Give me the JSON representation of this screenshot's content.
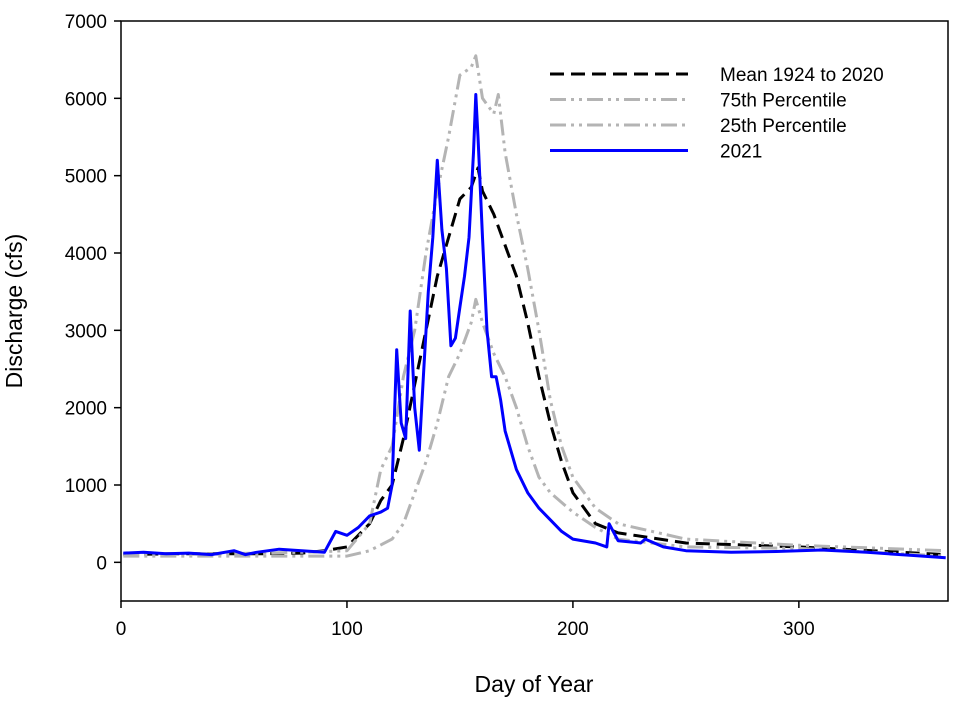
{
  "chart_data": {
    "type": "line",
    "x_label": "Day of Year",
    "y_label": "Discharge (cfs)",
    "xlim": [
      0,
      366
    ],
    "ylim": [
      -500,
      7000
    ],
    "xticks": [
      0,
      100,
      200,
      300
    ],
    "yticks": [
      0,
      1000,
      2000,
      3000,
      4000,
      5000,
      6000,
      7000
    ],
    "legend": "upper right",
    "series": [
      {
        "name": "Mean 1924 to 2020",
        "color": "#000000",
        "dash": "dashed",
        "x": [
          1,
          20,
          40,
          60,
          80,
          90,
          100,
          110,
          115,
          120,
          125,
          130,
          135,
          140,
          145,
          150,
          155,
          158,
          160,
          165,
          170,
          175,
          180,
          185,
          190,
          195,
          200,
          210,
          220,
          250,
          300,
          365
        ],
        "values": [
          100,
          110,
          110,
          110,
          120,
          150,
          200,
          500,
          800,
          1000,
          1600,
          2300,
          3000,
          3700,
          4200,
          4700,
          4850,
          5100,
          4800,
          4500,
          4100,
          3700,
          3100,
          2400,
          1800,
          1300,
          900,
          500,
          380,
          250,
          200,
          100
        ]
      },
      {
        "name": "75th Percentile",
        "color": "#b4b4b4",
        "dash": "dashdotdot",
        "x": [
          1,
          20,
          40,
          60,
          80,
          90,
          100,
          110,
          115,
          120,
          125,
          130,
          135,
          140,
          145,
          150,
          155,
          157,
          160,
          165,
          167,
          170,
          175,
          180,
          185,
          190,
          195,
          200,
          210,
          220,
          250,
          300,
          365
        ],
        "values": [
          110,
          110,
          110,
          120,
          130,
          140,
          150,
          500,
          1200,
          1500,
          2400,
          3000,
          4000,
          4800,
          5500,
          6300,
          6400,
          6550,
          6000,
          5800,
          6050,
          5300,
          4500,
          3800,
          3000,
          2100,
          1500,
          1100,
          700,
          500,
          300,
          220,
          150
        ]
      },
      {
        "name": "25th Percentile",
        "color": "#b4b4b4",
        "dash": "dashdotdot",
        "x": [
          1,
          20,
          40,
          60,
          80,
          90,
          100,
          110,
          120,
          125,
          130,
          135,
          140,
          145,
          150,
          155,
          157,
          160,
          165,
          170,
          175,
          180,
          185,
          190,
          200,
          210,
          220,
          250,
          300,
          365
        ],
        "values": [
          80,
          80,
          80,
          80,
          80,
          80,
          80,
          150,
          300,
          500,
          900,
          1300,
          1800,
          2400,
          2700,
          3100,
          3400,
          3100,
          2700,
          2400,
          2000,
          1500,
          1100,
          900,
          650,
          450,
          300,
          200,
          180,
          80
        ]
      },
      {
        "name": "2021",
        "color": "#0000ff",
        "dash": "solid",
        "x": [
          1,
          10,
          20,
          30,
          40,
          50,
          55,
          60,
          70,
          80,
          90,
          95,
          100,
          105,
          110,
          115,
          118,
          120,
          122,
          124,
          126,
          128,
          130,
          132,
          134,
          136,
          138,
          140,
          142,
          144,
          146,
          148,
          150,
          152,
          154,
          156,
          157,
          158,
          160,
          162,
          164,
          166,
          168,
          170,
          175,
          180,
          185,
          190,
          195,
          200,
          210,
          215,
          216,
          220,
          230,
          232,
          240,
          250,
          270,
          290,
          310,
          330,
          350,
          365
        ],
        "values": [
          120,
          130,
          110,
          120,
          100,
          150,
          100,
          130,
          170,
          150,
          130,
          400,
          350,
          450,
          600,
          650,
          700,
          1000,
          2750,
          1800,
          1600,
          3250,
          2000,
          1450,
          2500,
          3500,
          4200,
          5200,
          4300,
          3800,
          2800,
          2900,
          3300,
          3700,
          4200,
          5300,
          6050,
          5500,
          4200,
          3000,
          2400,
          2400,
          2100,
          1700,
          1200,
          900,
          700,
          550,
          400,
          300,
          250,
          200,
          500,
          280,
          250,
          300,
          200,
          150,
          130,
          140,
          160,
          130,
          90,
          60
        ]
      }
    ]
  }
}
